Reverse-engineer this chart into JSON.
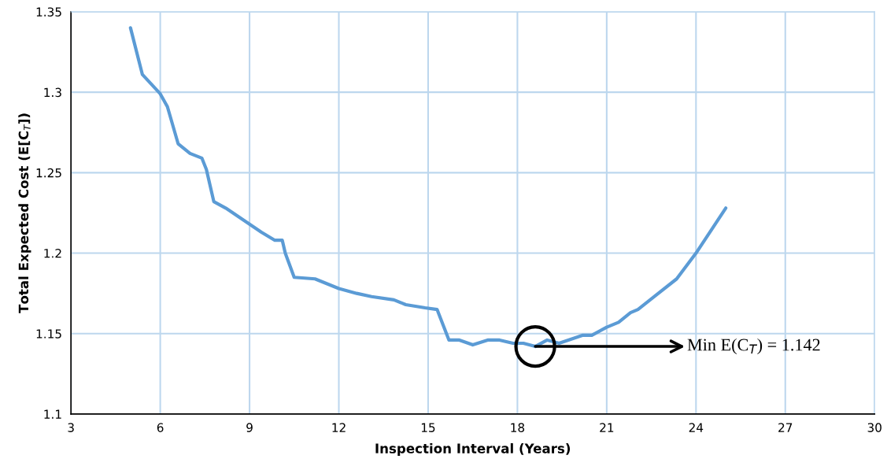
{
  "chart_data": {
    "type": "line",
    "xlabel": "Inspection Interval (Years)",
    "ylabel": "Total Expected Cost (E[C$_{T}$])",
    "x": [
      5,
      5.4,
      6,
      6.24,
      6.6,
      7,
      7.4,
      7.55,
      7.8,
      8.2,
      9,
      9.4,
      9.85,
      10.1,
      10.2,
      10.5,
      11.2,
      12,
      12.6,
      13.1,
      13.85,
      14.25,
      14.9,
      15.3,
      15.7,
      16.05,
      16.5,
      17,
      17.4,
      17.85,
      18.2,
      18.6,
      19.0,
      19.4,
      20.2,
      20.5,
      21,
      21.4,
      21.8,
      22.05,
      22.6,
      23.35,
      24,
      25
    ],
    "series": [
      {
        "color": "#5b9bd5",
        "values": [
          1.34,
          1.311,
          1.299,
          1.291,
          1.268,
          1.262,
          1.259,
          1.252,
          1.232,
          1.228,
          1.218,
          1.213,
          1.208,
          1.208,
          1.2,
          1.185,
          1.184,
          1.178,
          1.175,
          1.173,
          1.171,
          1.168,
          1.166,
          1.165,
          1.146,
          1.146,
          1.143,
          1.146,
          1.146,
          1.144,
          1.144,
          1.142,
          1.146,
          1.144,
          1.149,
          1.149,
          1.154,
          1.157,
          1.163,
          1.165,
          1.173,
          1.184,
          1.2,
          1.228
        ]
      }
    ],
    "xlim": [
      3,
      30
    ],
    "xticks": [
      3,
      6,
      9,
      12,
      15,
      18,
      21,
      24,
      27,
      30
    ],
    "ylim": [
      1.1,
      1.35
    ],
    "yticks": [
      1.1,
      1.15,
      1.2,
      1.25,
      1.3,
      1.35
    ],
    "grid": true,
    "marker": "none",
    "line_style": "solid",
    "annotations": [
      {
        "text": "Min E(C$_{T}$) = 1.142",
        "x": 18.6,
        "y": 1.142
      }
    ]
  }
}
